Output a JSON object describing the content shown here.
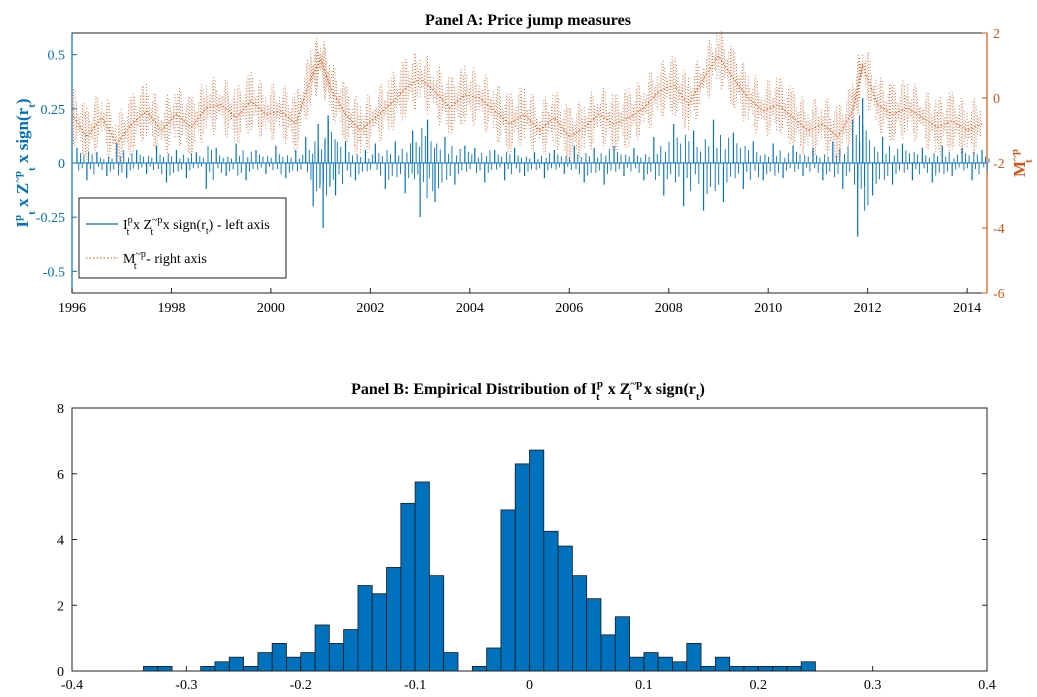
{
  "colors": {
    "left": "#0072bd",
    "right": "#d95319",
    "bars": "#0072bd",
    "edge": "#1a1a1a"
  },
  "chart_data": [
    {
      "type": "line",
      "title": "Panel A: Price jump measures",
      "xlim": [
        1996,
        2014.4
      ],
      "x_ticks": [
        "1996",
        "1998",
        "2000",
        "2002",
        "2004",
        "2006",
        "2008",
        "2010",
        "2012",
        "2014"
      ],
      "ylim_left": [
        -0.6,
        0.6
      ],
      "y_ticks_left": [
        "-0.5",
        "-0.25",
        "0",
        "0.25",
        "0.5"
      ],
      "ylim_right": [
        -6,
        2
      ],
      "y_ticks_right": [
        "-6",
        "-4",
        "-2",
        "0",
        "2"
      ],
      "ylabel_left": "I_t^p x Z_t^~p x sign(r_t)",
      "ylabel_right": "M_t^~p",
      "grid": false,
      "legend_position": "bottom-left",
      "legend": [
        {
          "label": "I_t^p x Z_t^~p x sign(r_t) - left axis",
          "style": "solid"
        },
        {
          "label": "M_t^~p - right axis",
          "style": "dotted"
        }
      ],
      "series": [
        {
          "axis": "left",
          "style": "stems",
          "x": [
            1996.1,
            1996.3,
            1996.5,
            1996.7,
            1996.9,
            1997.1,
            1997.3,
            1997.5,
            1997.7,
            1997.9,
            1998.1,
            1998.3,
            1998.5,
            1998.7,
            1998.9,
            1999.1,
            1999.3,
            1999.5,
            1999.7,
            1999.9,
            2000.1,
            2000.3,
            2000.5,
            2000.7,
            2000.85,
            2000.95,
            2001.05,
            2001.15,
            2001.3,
            2001.5,
            2001.7,
            2001.9,
            2002.1,
            2002.3,
            2002.5,
            2002.7,
            2002.85,
            2003.0,
            2003.15,
            2003.3,
            2003.5,
            2003.7,
            2003.9,
            2004.1,
            2004.3,
            2004.5,
            2004.7,
            2004.9,
            2005.1,
            2005.3,
            2005.5,
            2005.7,
            2005.9,
            2006.1,
            2006.3,
            2006.5,
            2006.7,
            2006.9,
            2007.1,
            2007.3,
            2007.5,
            2007.7,
            2007.9,
            2008.1,
            2008.3,
            2008.5,
            2008.7,
            2008.9,
            2009.1,
            2009.3,
            2009.5,
            2009.7,
            2009.9,
            2010.1,
            2010.3,
            2010.5,
            2010.7,
            2010.9,
            2011.1,
            2011.3,
            2011.5,
            2011.7,
            2011.8,
            2011.9,
            2012.1,
            2012.3,
            2012.5,
            2012.7,
            2012.9,
            2013.1,
            2013.3,
            2013.5,
            2013.7,
            2013.9,
            2014.1,
            2014.3
          ],
          "y": [
            0.07,
            -0.08,
            0.05,
            -0.06,
            0.09,
            -0.07,
            0.06,
            -0.05,
            0.08,
            -0.09,
            0.06,
            -0.07,
            0.05,
            -0.12,
            0.07,
            -0.06,
            0.09,
            -0.08,
            0.06,
            -0.05,
            0.08,
            -0.07,
            0.06,
            0.12,
            -0.2,
            0.18,
            -0.3,
            0.22,
            -0.15,
            0.1,
            -0.08,
            0.06,
            0.09,
            -0.12,
            0.1,
            -0.14,
            0.15,
            -0.25,
            0.2,
            -0.18,
            0.12,
            -0.1,
            0.08,
            0.07,
            -0.09,
            0.06,
            -0.08,
            0.07,
            -0.06,
            0.05,
            -0.07,
            0.06,
            -0.05,
            0.08,
            -0.09,
            0.07,
            -0.1,
            0.08,
            -0.06,
            0.07,
            -0.08,
            0.12,
            -0.15,
            0.18,
            -0.2,
            0.15,
            -0.22,
            0.2,
            -0.18,
            0.14,
            -0.12,
            0.1,
            -0.08,
            0.09,
            -0.07,
            0.08,
            -0.06,
            0.07,
            -0.08,
            0.1,
            -0.12,
            0.2,
            -0.34,
            0.3,
            -0.15,
            0.12,
            -0.1,
            0.09,
            -0.08,
            0.07,
            -0.09,
            0.08,
            -0.06,
            0.07,
            -0.08,
            0.06
          ]
        },
        {
          "axis": "right",
          "style": "dotted",
          "x": [
            1996.0,
            1996.3,
            1996.6,
            1996.9,
            1997.2,
            1997.5,
            1997.8,
            1998.1,
            1998.4,
            1998.7,
            1999.0,
            1999.3,
            1999.6,
            1999.9,
            2000.2,
            2000.5,
            2000.8,
            2001.0,
            2001.2,
            2001.5,
            2001.8,
            2002.1,
            2002.4,
            2002.7,
            2003.0,
            2003.3,
            2003.6,
            2003.9,
            2004.2,
            2004.5,
            2004.8,
            2005.1,
            2005.4,
            2005.7,
            2006.0,
            2006.3,
            2006.6,
            2006.9,
            2007.2,
            2007.5,
            2007.8,
            2008.1,
            2008.4,
            2008.7,
            2009.0,
            2009.3,
            2009.6,
            2009.9,
            2010.2,
            2010.5,
            2010.8,
            2011.1,
            2011.4,
            2011.7,
            2011.9,
            2012.2,
            2012.5,
            2012.8,
            2013.1,
            2013.4,
            2013.7,
            2014.0,
            2014.3
          ],
          "y": [
            -0.5,
            -1.2,
            -0.6,
            -1.4,
            -0.8,
            -0.4,
            -1.0,
            -0.5,
            -0.9,
            -0.3,
            -0.2,
            -0.6,
            -0.1,
            -0.5,
            -0.4,
            -0.8,
            0.6,
            1.2,
            0.3,
            -0.5,
            -1.0,
            -0.6,
            -0.2,
            0.3,
            0.6,
            0.2,
            -0.3,
            0.1,
            0.0,
            -0.4,
            -0.8,
            -0.5,
            -1.0,
            -0.6,
            -1.2,
            -0.9,
            -0.5,
            -0.8,
            -0.6,
            -0.3,
            0.2,
            0.4,
            -0.2,
            0.6,
            1.3,
            0.6,
            0.0,
            -0.4,
            -0.2,
            -0.6,
            -1.0,
            -0.8,
            -1.2,
            -0.4,
            1.0,
            -0.2,
            -0.5,
            -0.3,
            -0.6,
            -0.9,
            -0.7,
            -1.0,
            -0.8
          ]
        }
      ]
    },
    {
      "type": "bar",
      "title": "Panel B: Empirical Distribution of I_t^p x Z_t^~p x sign(r_t)",
      "xlim": [
        -0.4,
        0.4
      ],
      "x_ticks": [
        "-0.4",
        "-0.3",
        "-0.2",
        "-0.1",
        "0",
        "0.1",
        "0.2",
        "0.3",
        "0.4"
      ],
      "ylim": [
        0,
        8
      ],
      "y_ticks": [
        "0",
        "2",
        "4",
        "6",
        "8"
      ],
      "bin_width": 0.0125,
      "bin_start": [
        -0.3375,
        -0.325,
        -0.2875,
        -0.275,
        -0.2625,
        -0.25,
        -0.2375,
        -0.225,
        -0.2125,
        -0.2,
        -0.1875,
        -0.175,
        -0.1625,
        -0.15,
        -0.1375,
        -0.125,
        -0.1125,
        -0.1,
        -0.0875,
        -0.075,
        -0.0625,
        -0.05,
        -0.0375,
        -0.025,
        -0.0125,
        0.0,
        0.0125,
        0.025,
        0.0375,
        0.05,
        0.0625,
        0.075,
        0.0875,
        0.1,
        0.1125,
        0.125,
        0.1375,
        0.15,
        0.1625,
        0.175,
        0.1875,
        0.2,
        0.2125,
        0.225,
        0.2375,
        0.25,
        0.2625,
        0.2875,
        0.3125,
        0.3375,
        0.35,
        0.3875
      ],
      "values": [
        0.14,
        0.14,
        0.14,
        0.28,
        0.42,
        0.14,
        0.56,
        0.84,
        0.42,
        0.56,
        1.4,
        0.84,
        1.26,
        2.6,
        2.35,
        3.15,
        5.1,
        5.75,
        2.9,
        0.56,
        0.0,
        0.14,
        0.7,
        4.9,
        6.3,
        6.72,
        4.25,
        3.8,
        2.9,
        2.2,
        1.1,
        1.65,
        0.42,
        0.56,
        0.42,
        0.28,
        0.84,
        0.14,
        0.42,
        0.14,
        0.14,
        0.14,
        0.14,
        0.14,
        0.28,
        0.0,
        0.0,
        0.0,
        0.0,
        0.0,
        0.0,
        0.0
      ],
      "grid": false
    }
  ]
}
